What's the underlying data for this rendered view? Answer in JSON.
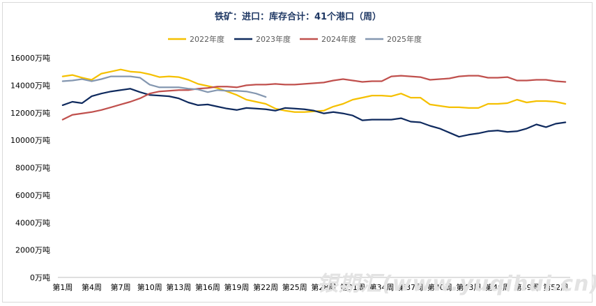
{
  "page_title": "铁矿：进口：库存合计：41个港口（周）",
  "watermark": "银期汇(www.yuqihui.cn)",
  "chart_data": {
    "type": "line",
    "title": "铁矿：进口：库存合计：41个港口（周）",
    "xlabel": "",
    "ylabel": "",
    "ylim": [
      0,
      16000
    ],
    "y_ticks": [
      0,
      2000,
      4000,
      6000,
      8000,
      10000,
      12000,
      14000,
      16000
    ],
    "y_tick_labels": [
      "0万吨",
      "2000万吨",
      "4000万吨",
      "6000万吨",
      "8000万吨",
      "10000万吨",
      "12000万吨",
      "14000万吨",
      "16000万吨"
    ],
    "x_count": 53,
    "x_tick_labels": [
      "第1周",
      "第4周",
      "第7周",
      "第10周",
      "第13周",
      "第16周",
      "第19周",
      "第22周",
      "第25周",
      "第28周",
      "第31周",
      "第34周",
      "第37周",
      "第40周",
      "第43周",
      "第46周",
      "第49周",
      "第52周"
    ],
    "x_tick_positions": [
      1,
      4,
      7,
      10,
      13,
      16,
      19,
      22,
      25,
      28,
      31,
      34,
      37,
      40,
      43,
      46,
      49,
      52
    ],
    "grid": false,
    "legend_position": "top-center",
    "series": [
      {
        "name": "2022年度",
        "color": "#f5c000",
        "values": [
          14650,
          14750,
          14550,
          14400,
          14850,
          15000,
          15150,
          15000,
          14950,
          14800,
          14600,
          14650,
          14600,
          14400,
          14100,
          13950,
          13800,
          13550,
          13300,
          12950,
          12800,
          12650,
          12300,
          12150,
          12050,
          12050,
          12100,
          12150,
          12450,
          12650,
          12950,
          13100,
          13250,
          13250,
          13200,
          13400,
          13100,
          13100,
          12600,
          12500,
          12400,
          12400,
          12350,
          12350,
          12650,
          12650,
          12700,
          12950,
          12750,
          12850,
          12850,
          12800,
          12650
        ]
      },
      {
        "name": "2023年度",
        "color": "#0f2a5e",
        "values": [
          12550,
          12800,
          12700,
          13200,
          13400,
          13550,
          13650,
          13750,
          13500,
          13300,
          13250,
          13200,
          13050,
          12750,
          12550,
          12600,
          12450,
          12300,
          12200,
          12350,
          12300,
          12250,
          12150,
          12350,
          12300,
          12250,
          12150,
          11950,
          12050,
          11950,
          11800,
          11450,
          11500,
          11500,
          11500,
          11600,
          11350,
          11300,
          11050,
          10850,
          10550,
          10250,
          10400,
          10500,
          10650,
          10700,
          10600,
          10650,
          10850,
          11150,
          10950,
          11200,
          11300
        ]
      },
      {
        "name": "2024年度",
        "color": "#c0504d",
        "values": [
          11500,
          11850,
          11950,
          12050,
          12200,
          12400,
          12600,
          12800,
          13050,
          13400,
          13550,
          13600,
          13650,
          13650,
          13750,
          13800,
          13900,
          13900,
          13850,
          14000,
          14050,
          14050,
          14100,
          14050,
          14050,
          14100,
          14150,
          14200,
          14350,
          14450,
          14350,
          14250,
          14300,
          14300,
          14650,
          14700,
          14650,
          14600,
          14400,
          14450,
          14500,
          14650,
          14700,
          14700,
          14550,
          14550,
          14600,
          14350,
          14350,
          14400,
          14400,
          14300,
          14250
        ]
      },
      {
        "name": "2025年度",
        "color": "#8497b0",
        "values": [
          14300,
          14350,
          14450,
          14300,
          14450,
          14650,
          14650,
          14650,
          14550,
          14050,
          13850,
          13850,
          13850,
          13750,
          13700,
          13500,
          13650,
          13600,
          13600,
          13550,
          13400,
          13150
        ]
      }
    ]
  }
}
